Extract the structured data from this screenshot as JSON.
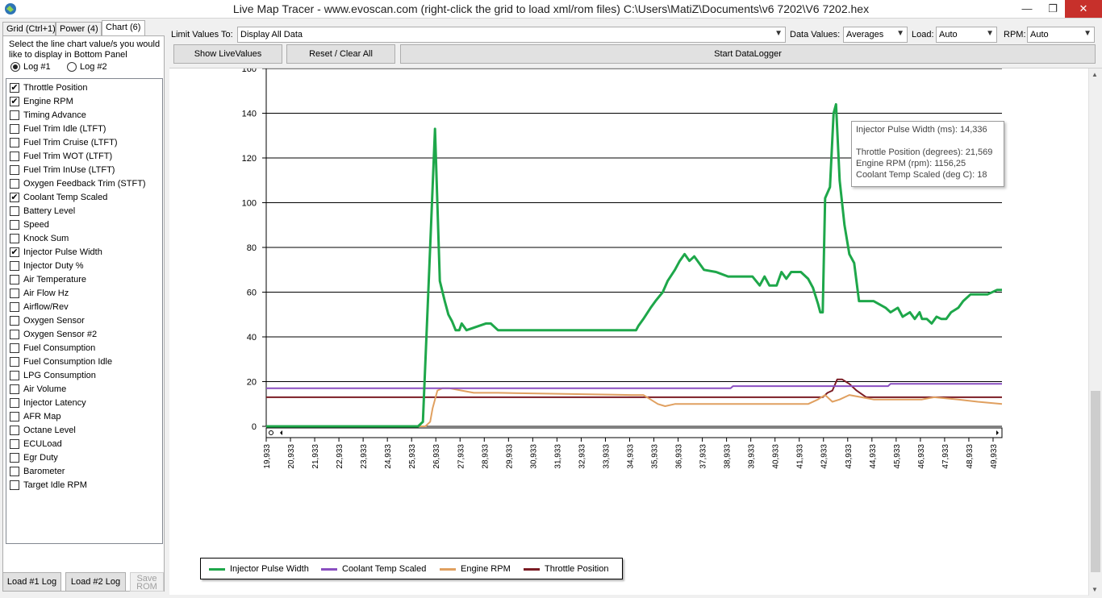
{
  "window": {
    "title": "Live Map Tracer - www.evoscan.com (right-click the grid to load xml/rom files) C:\\Users\\MatiZ\\Documents\\v6 7202\\V6 7202.hex",
    "minimize": "—",
    "maximize": "❐",
    "close": "✕"
  },
  "tabs": [
    {
      "label": "Grid (Ctrl+1)"
    },
    {
      "label": "Power (4)"
    },
    {
      "label": "Chart (6)"
    }
  ],
  "panel": {
    "instructions": "Select the line chart value/s you would like to display in Bottom Panel",
    "radio_log1": "Log #1",
    "radio_log2": "Log #2",
    "selected_log": "Log #1"
  },
  "checklist": [
    {
      "label": "Throttle Position",
      "checked": true
    },
    {
      "label": "Engine RPM",
      "checked": true
    },
    {
      "label": "Timing Advance",
      "checked": false
    },
    {
      "label": "Fuel Trim Idle (LTFT)",
      "checked": false
    },
    {
      "label": "Fuel Trim Cruise (LTFT)",
      "checked": false
    },
    {
      "label": "Fuel Trim WOT (LTFT)",
      "checked": false
    },
    {
      "label": "Fuel Trim InUse (LTFT)",
      "checked": false
    },
    {
      "label": "Oxygen Feedback Trim (STFT)",
      "checked": false
    },
    {
      "label": "Coolant Temp Scaled",
      "checked": true
    },
    {
      "label": "Battery Level",
      "checked": false
    },
    {
      "label": "Speed",
      "checked": false
    },
    {
      "label": "Knock Sum",
      "checked": false
    },
    {
      "label": "Injector Pulse Width",
      "checked": true
    },
    {
      "label": "Injector Duty %",
      "checked": false
    },
    {
      "label": "Air Temperature",
      "checked": false
    },
    {
      "label": "Air Flow Hz",
      "checked": false
    },
    {
      "label": "Airflow/Rev",
      "checked": false
    },
    {
      "label": "Oxygen Sensor",
      "checked": false
    },
    {
      "label": "Oxygen Sensor #2",
      "checked": false
    },
    {
      "label": "Fuel Consumption",
      "checked": false
    },
    {
      "label": "Fuel Consumption Idle",
      "checked": false
    },
    {
      "label": "LPG Consumption",
      "checked": false
    },
    {
      "label": "Air Volume",
      "checked": false
    },
    {
      "label": "Injector Latency",
      "checked": false
    },
    {
      "label": "AFR Map",
      "checked": false
    },
    {
      "label": "Octane Level",
      "checked": false
    },
    {
      "label": "ECULoad",
      "checked": false
    },
    {
      "label": "Egr Duty",
      "checked": false
    },
    {
      "label": "Barometer",
      "checked": false
    },
    {
      "label": "Target Idle RPM",
      "checked": false
    }
  ],
  "bottom_buttons": {
    "load1": "Load #1 Log",
    "load2": "Load #2 Log",
    "save_rom": "Save ROM"
  },
  "toolbar": {
    "limit_label": "Limit Values To:",
    "limit_value": "Display All Data",
    "data_values_label": "Data Values:",
    "data_values_value": "Averages",
    "load_label": "Load:",
    "load_value": "Auto",
    "rpm_label": "RPM:",
    "rpm_value": "Auto",
    "show_live": "Show LiveValues",
    "reset": "Reset / Clear All",
    "start_logger": "Start DataLogger"
  },
  "tooltip": {
    "line1": "Injector Pulse Width (ms): 14,336",
    "line2": "Throttle Position (degrees): 21,569",
    "line3": "Engine RPM (rpm): 1156,25",
    "line4": "Coolant Temp Scaled (deg C): 18"
  },
  "colors": {
    "injector": "#1ea74a",
    "coolant": "#8a4fc1",
    "rpm": "#e0a060",
    "throttle": "#7b1c24"
  },
  "chart_data": {
    "type": "line",
    "y_ticks": [
      "0",
      "20",
      "40",
      "60",
      "80",
      "100",
      "120",
      "140",
      "160"
    ],
    "ylim": [
      0,
      160
    ],
    "grid": "horizontal",
    "legend_position": "bottom-left",
    "x_ticks": [
      "19,933",
      "20,933",
      "21,933",
      "22,933",
      "23,933",
      "24,933",
      "25,933",
      "26,933",
      "27,933",
      "28,933",
      "29,933",
      "30,933",
      "31,933",
      "32,933",
      "33,933",
      "34,933",
      "35,933",
      "36,933",
      "37,933",
      "38,933",
      "39,933",
      "40,933",
      "41,933",
      "42,933",
      "43,933",
      "44,933",
      "45,933",
      "46,933",
      "47,933",
      "48,933",
      "49,933"
    ],
    "xlim": [
      19.933,
      50.3
    ],
    "series": [
      {
        "name": "Injector Pulse Width",
        "x": [
          19.933,
          26.2,
          26.4,
          26.7,
          26.9,
          27.1,
          27.3,
          27.45,
          27.6,
          27.75,
          27.9,
          28.0,
          28.2,
          29.0,
          29.2,
          29.5,
          35.2,
          35.3,
          35.5,
          35.8,
          36.0,
          36.3,
          36.5,
          36.8,
          37.0,
          37.2,
          37.4,
          37.6,
          38.0,
          38.5,
          39.0,
          39.5,
          40.0,
          40.3,
          40.5,
          40.7,
          41.0,
          41.2,
          41.4,
          41.6,
          41.8,
          42.0,
          42.3,
          42.5,
          42.7,
          42.8,
          42.9,
          43.0,
          43.2,
          43.35,
          43.45,
          43.6,
          43.8,
          44.0,
          44.2,
          44.4,
          44.5,
          44.7,
          45.0,
          45.5,
          45.7,
          46.0,
          46.2,
          46.5,
          46.7,
          46.9,
          47.0,
          47.2,
          47.4,
          47.6,
          47.8,
          48.0,
          48.2,
          48.5,
          48.7,
          49.0,
          49.5,
          49.7,
          50.1,
          50.3
        ],
        "y": [
          0,
          0,
          2,
          80,
          133,
          65,
          56,
          50,
          47,
          43,
          43,
          46,
          43,
          46,
          46,
          43,
          43,
          45,
          48,
          53,
          56,
          60,
          65,
          70,
          74,
          77,
          74,
          76,
          70,
          69,
          67,
          67,
          67,
          63,
          67,
          63,
          63,
          69,
          66,
          69,
          69,
          69,
          66,
          62,
          55,
          51,
          51,
          102,
          107,
          140,
          144,
          110,
          90,
          77,
          73,
          56,
          56,
          56,
          56,
          53,
          51,
          53,
          49,
          51,
          48,
          51,
          48,
          48,
          46,
          49,
          48,
          48,
          51,
          53,
          56,
          59,
          59,
          59,
          61,
          61
        ]
      },
      {
        "name": "Coolant Temp Scaled",
        "x": [
          19.933,
          39.1,
          39.2,
          45.6,
          45.7,
          50.3
        ],
        "y": [
          17,
          17,
          18,
          18,
          19,
          19
        ]
      },
      {
        "name": "Engine RPM",
        "x": [
          19.933,
          26.5,
          26.7,
          26.8,
          27.0,
          27.2,
          27.5,
          28.0,
          28.5,
          29.5,
          35.0,
          35.5,
          35.8,
          36.1,
          36.4,
          36.8,
          37.2,
          37.6,
          38.2,
          39.5,
          40.5,
          42.3,
          42.7,
          43.0,
          43.3,
          43.6,
          44.0,
          44.5,
          45.0,
          46.0,
          47.0,
          47.5,
          48.5,
          49.3,
          50.3
        ],
        "y": [
          0,
          0,
          2,
          8,
          16,
          17,
          17,
          16,
          15,
          15,
          14,
          14,
          12,
          10,
          9,
          10,
          10,
          10,
          10,
          10,
          10,
          10,
          12,
          14,
          11,
          12,
          14,
          13,
          12,
          12,
          12,
          13,
          12,
          11,
          10
        ]
      },
      {
        "name": "Throttle Position",
        "x": [
          19.933,
          42.7,
          42.9,
          43.1,
          43.3,
          43.5,
          43.7,
          44.0,
          44.3,
          44.7,
          45.0,
          50.3
        ],
        "y": [
          13,
          13,
          13,
          15,
          16,
          21,
          21,
          19,
          16,
          13,
          13,
          13
        ]
      }
    ]
  }
}
